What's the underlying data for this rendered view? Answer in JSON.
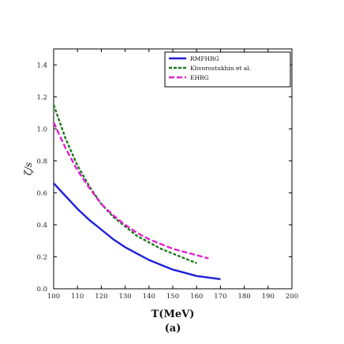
{
  "chart_data": {
    "type": "line",
    "xlabel": "T(MeV)",
    "ylabel": "ζ/s",
    "panel_label": "(a)",
    "xlim": [
      100,
      200
    ],
    "ylim": [
      0.0,
      1.5
    ],
    "xticks": [
      "100",
      "110",
      "120",
      "130",
      "140",
      "150",
      "160",
      "170",
      "180",
      "190",
      "200"
    ],
    "yticks": [
      "0.0",
      "0.2",
      "0.4",
      "0.6",
      "0.8",
      "1.0",
      "1.2",
      "1.4"
    ],
    "grid": false,
    "legend_position": "top-right",
    "series": [
      {
        "name": "RMFHRG",
        "color": "#1f1fd6",
        "style": "solid",
        "x": [
          100,
          105,
          110,
          115,
          120,
          125,
          130,
          135,
          140,
          145,
          150,
          155,
          160,
          165,
          170
        ],
        "y": [
          0.66,
          0.58,
          0.5,
          0.43,
          0.37,
          0.31,
          0.26,
          0.22,
          0.18,
          0.15,
          0.12,
          0.1,
          0.08,
          0.07,
          0.06
        ]
      },
      {
        "name": "Khvorostukhin et al.",
        "color": "#1e7a1e",
        "style": "dashed",
        "x": [
          100,
          105,
          110,
          115,
          120,
          125,
          130,
          135,
          140,
          145,
          150,
          155,
          160
        ],
        "y": [
          1.15,
          0.94,
          0.77,
          0.64,
          0.53,
          0.45,
          0.39,
          0.33,
          0.29,
          0.25,
          0.22,
          0.19,
          0.16
        ]
      },
      {
        "name": "EHRG",
        "color": "#e020d0",
        "style": "dashed",
        "x": [
          100,
          105,
          110,
          115,
          120,
          125,
          130,
          135,
          140,
          145,
          150,
          155,
          160,
          165
        ],
        "y": [
          1.04,
          0.88,
          0.74,
          0.63,
          0.53,
          0.46,
          0.4,
          0.35,
          0.31,
          0.28,
          0.25,
          0.23,
          0.21,
          0.19
        ]
      }
    ]
  }
}
